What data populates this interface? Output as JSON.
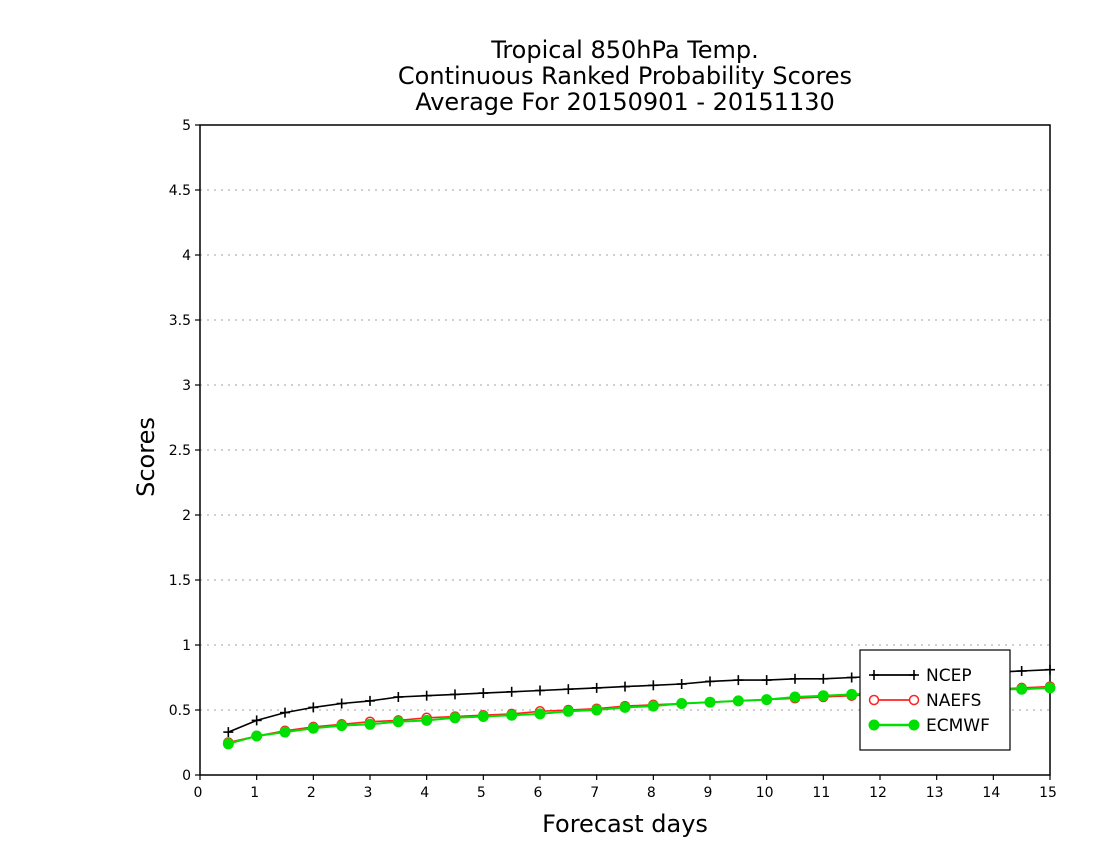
{
  "chart_data": {
    "type": "line",
    "title_lines": [
      "Tropical 850hPa Temp.",
      "Continuous Ranked Probability Scores",
      "Average For 20150901 - 20151130"
    ],
    "xlabel": "Forecast days",
    "ylabel": "Scores",
    "xlim": [
      0,
      15
    ],
    "ylim": [
      0,
      5
    ],
    "x_ticks": [
      0,
      1,
      2,
      3,
      4,
      5,
      6,
      7,
      8,
      9,
      10,
      11,
      12,
      13,
      14,
      15
    ],
    "x_tick_labels": [
      "0",
      "1",
      "2",
      "3",
      "4",
      "5",
      "6",
      "7",
      "8",
      "9",
      "10",
      "11",
      "12",
      "13",
      "14",
      "15"
    ],
    "y_ticks": [
      0,
      0.5,
      1,
      1.5,
      2,
      2.5,
      3,
      3.5,
      4,
      4.5,
      5
    ],
    "y_tick_labels": [
      "0",
      "0.5",
      "1",
      "1.5",
      "2",
      "2.5",
      "3",
      "3.5",
      "4",
      "4.5",
      "5"
    ],
    "grid": true,
    "legend_position": "bottom-right",
    "x": [
      0.5,
      1,
      1.5,
      2,
      2.5,
      3,
      3.5,
      4,
      4.5,
      5,
      5.5,
      6,
      6.5,
      7,
      7.5,
      8,
      8.5,
      9,
      9.5,
      10,
      10.5,
      11,
      11.5,
      12,
      12.5,
      13,
      13.5,
      14,
      14.5,
      15
    ],
    "series": [
      {
        "name": "NCEP",
        "color": "#000000",
        "marker": "plus",
        "values": [
          0.33,
          0.42,
          0.48,
          0.52,
          0.55,
          0.57,
          0.6,
          0.61,
          0.62,
          0.63,
          0.64,
          0.65,
          0.66,
          0.67,
          0.68,
          0.69,
          0.7,
          0.72,
          0.73,
          0.73,
          0.74,
          0.74,
          0.75,
          0.76,
          0.77,
          0.77,
          0.78,
          0.79,
          0.8,
          0.81
        ]
      },
      {
        "name": "NAEFS",
        "color": "#ff2222",
        "marker": "open-circle",
        "values": [
          0.25,
          0.3,
          0.34,
          0.37,
          0.39,
          0.41,
          0.42,
          0.44,
          0.45,
          0.46,
          0.47,
          0.49,
          0.5,
          0.51,
          0.53,
          0.54,
          0.55,
          0.56,
          0.57,
          0.58,
          0.59,
          0.6,
          0.61,
          0.62,
          0.63,
          0.64,
          0.65,
          0.66,
          0.67,
          0.68
        ]
      },
      {
        "name": "ECMWF",
        "color": "#00e000",
        "marker": "filled-circle",
        "values": [
          0.24,
          0.3,
          0.33,
          0.36,
          0.38,
          0.39,
          0.41,
          0.42,
          0.44,
          0.45,
          0.46,
          0.47,
          0.49,
          0.5,
          0.52,
          0.53,
          0.55,
          0.56,
          0.57,
          0.58,
          0.6,
          0.61,
          0.62,
          0.63,
          0.64,
          0.65,
          0.66,
          0.66,
          0.66,
          0.67
        ]
      }
    ]
  }
}
